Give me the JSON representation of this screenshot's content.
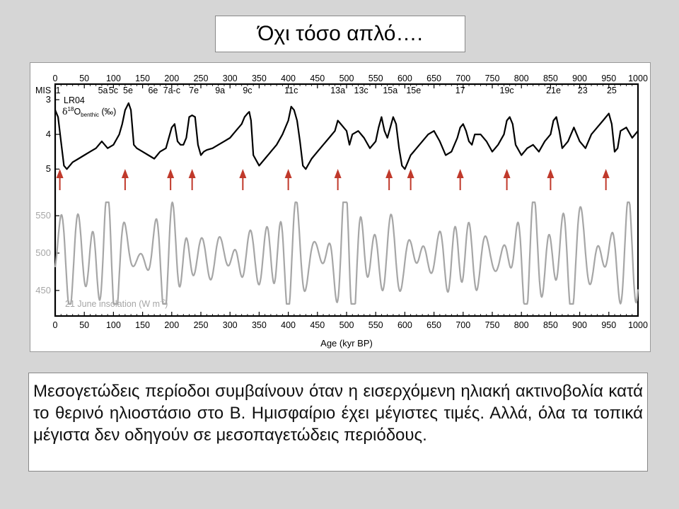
{
  "slide": {
    "title": "Όχι τόσο απλό….",
    "caption": "Μεσογετώδεις περίοδοι συμβαίνουν όταν η εισερχόμενη ηλιακή ακτινοβολία κατά το θερινό ηλιοστάσιο στο Β. Ημισφαίριο έχει μέγιστες τιμές.  Αλλά, όλα τα τοπικά μέγιστα δεν οδηγούν σε μεσοπαγετώδεις περιόδους."
  },
  "colors": {
    "d18o": "#000000",
    "insolation": "#a6a6a6",
    "arrow": "#c0392b"
  },
  "chart_data": {
    "type": "line",
    "xlabel": "Age (kyr BP)",
    "xlim": [
      0,
      1000
    ],
    "x_ticks": [
      "0",
      "50",
      "100",
      "150",
      "200",
      "250",
      "300",
      "350",
      "400",
      "450",
      "500",
      "550",
      "600",
      "650",
      "700",
      "750",
      "800",
      "850",
      "900",
      "950",
      "1000"
    ],
    "mis_label": "MIS",
    "mis_stages": [
      {
        "label": "1",
        "age": 5
      },
      {
        "label": "5a",
        "age": 82
      },
      {
        "label": "5c",
        "age": 100
      },
      {
        "label": "5e",
        "age": 125
      },
      {
        "label": "6e",
        "age": 168
      },
      {
        "label": "7a-c",
        "age": 200
      },
      {
        "label": "7e",
        "age": 238
      },
      {
        "label": "9a",
        "age": 283
      },
      {
        "label": "9c",
        "age": 330
      },
      {
        "label": "11c",
        "age": 405
      },
      {
        "label": "13a",
        "age": 485
      },
      {
        "label": "13c",
        "age": 525
      },
      {
        "label": "15a",
        "age": 575
      },
      {
        "label": "15e",
        "age": 615
      },
      {
        "label": "17",
        "age": 695
      },
      {
        "label": "19c",
        "age": 775
      },
      {
        "label": "21e",
        "age": 855
      },
      {
        "label": "23",
        "age": 905
      },
      {
        "label": "25",
        "age": 955
      }
    ],
    "series": [
      {
        "name": "LR04 δ18Obenthic (‰)",
        "label_main": "LR04",
        "label_delta": "δ",
        "label_sup": "18",
        "label_o": "O",
        "label_sub": "benthic",
        "label_unit": " (‰)",
        "ylim": [
          3,
          5.2
        ],
        "y_reversed": true,
        "y_ticks": [
          "3",
          "4",
          "5"
        ],
        "x": [
          0,
          5,
          10,
          15,
          20,
          30,
          40,
          50,
          60,
          70,
          80,
          90,
          100,
          110,
          115,
          120,
          123,
          126,
          130,
          135,
          140,
          150,
          160,
          170,
          180,
          190,
          200,
          205,
          210,
          215,
          220,
          225,
          230,
          235,
          240,
          245,
          250,
          255,
          260,
          270,
          280,
          290,
          300,
          310,
          320,
          325,
          330,
          333,
          336,
          340,
          350,
          360,
          370,
          380,
          390,
          400,
          405,
          410,
          415,
          420,
          425,
          430,
          440,
          450,
          460,
          470,
          480,
          485,
          490,
          495,
          500,
          505,
          510,
          520,
          530,
          540,
          550,
          555,
          560,
          565,
          570,
          575,
          580,
          585,
          590,
          595,
          600,
          605,
          610,
          615,
          620,
          625,
          630,
          640,
          650,
          660,
          670,
          680,
          690,
          695,
          700,
          705,
          710,
          715,
          720,
          730,
          740,
          750,
          760,
          770,
          775,
          780,
          785,
          790,
          800,
          810,
          820,
          830,
          840,
          850,
          855,
          860,
          865,
          870,
          880,
          890,
          900,
          910,
          920,
          930,
          940,
          950,
          955,
          960,
          965,
          970,
          980,
          990,
          1000
        ],
        "values": [
          3.3,
          3.5,
          4.2,
          4.9,
          5.0,
          4.8,
          4.7,
          4.6,
          4.5,
          4.4,
          4.2,
          4.4,
          4.3,
          4.0,
          3.7,
          3.3,
          3.2,
          3.1,
          3.3,
          4.3,
          4.4,
          4.5,
          4.6,
          4.7,
          4.5,
          4.4,
          3.8,
          3.7,
          4.2,
          4.3,
          4.3,
          4.1,
          3.5,
          3.45,
          3.5,
          4.3,
          4.6,
          4.5,
          4.45,
          4.4,
          4.3,
          4.2,
          4.1,
          3.9,
          3.7,
          3.5,
          3.4,
          3.35,
          3.6,
          4.6,
          4.9,
          4.7,
          4.5,
          4.3,
          4.0,
          3.6,
          3.2,
          3.3,
          3.6,
          4.2,
          4.9,
          5.0,
          4.7,
          4.5,
          4.3,
          4.1,
          3.9,
          3.6,
          3.7,
          3.8,
          3.9,
          4.3,
          4.0,
          3.9,
          4.1,
          4.4,
          4.2,
          3.8,
          3.5,
          3.9,
          4.1,
          3.8,
          3.5,
          3.7,
          4.4,
          4.9,
          5.0,
          4.8,
          4.6,
          4.5,
          4.4,
          4.3,
          4.2,
          4.0,
          3.9,
          4.2,
          4.6,
          4.5,
          4.1,
          3.8,
          3.7,
          3.9,
          4.2,
          4.3,
          4.0,
          4.0,
          4.2,
          4.5,
          4.3,
          4.0,
          3.6,
          3.5,
          3.7,
          4.3,
          4.6,
          4.4,
          4.3,
          4.5,
          4.2,
          4.0,
          3.6,
          3.5,
          3.9,
          4.4,
          4.2,
          3.8,
          4.2,
          4.4,
          4.0,
          3.8,
          3.6,
          3.4,
          3.7,
          4.5,
          4.4,
          3.9,
          3.8,
          4.1,
          3.9
        ]
      },
      {
        "name": "21 June insolation (W m⁻²)",
        "label_text": "21 June insolation (W m",
        "label_sup": "-2",
        "label_end": ")",
        "ylim": [
          430,
          570
        ],
        "y_ticks": [
          "450",
          "500",
          "550"
        ],
        "mean": 495,
        "components": [
          [
            27,
            38,
            5.4
          ],
          [
            41,
            20,
            1.1
          ],
          [
            23,
            14,
            3.0
          ]
        ],
        "envelope": [
          [
            100,
            0.35,
            1.7
          ],
          [
            400,
            0.25,
            0.4
          ]
        ]
      }
    ],
    "arrows_at_ages": [
      8,
      120,
      198,
      235,
      322,
      400,
      485,
      573,
      610,
      695,
      775,
      850,
      945
    ]
  }
}
